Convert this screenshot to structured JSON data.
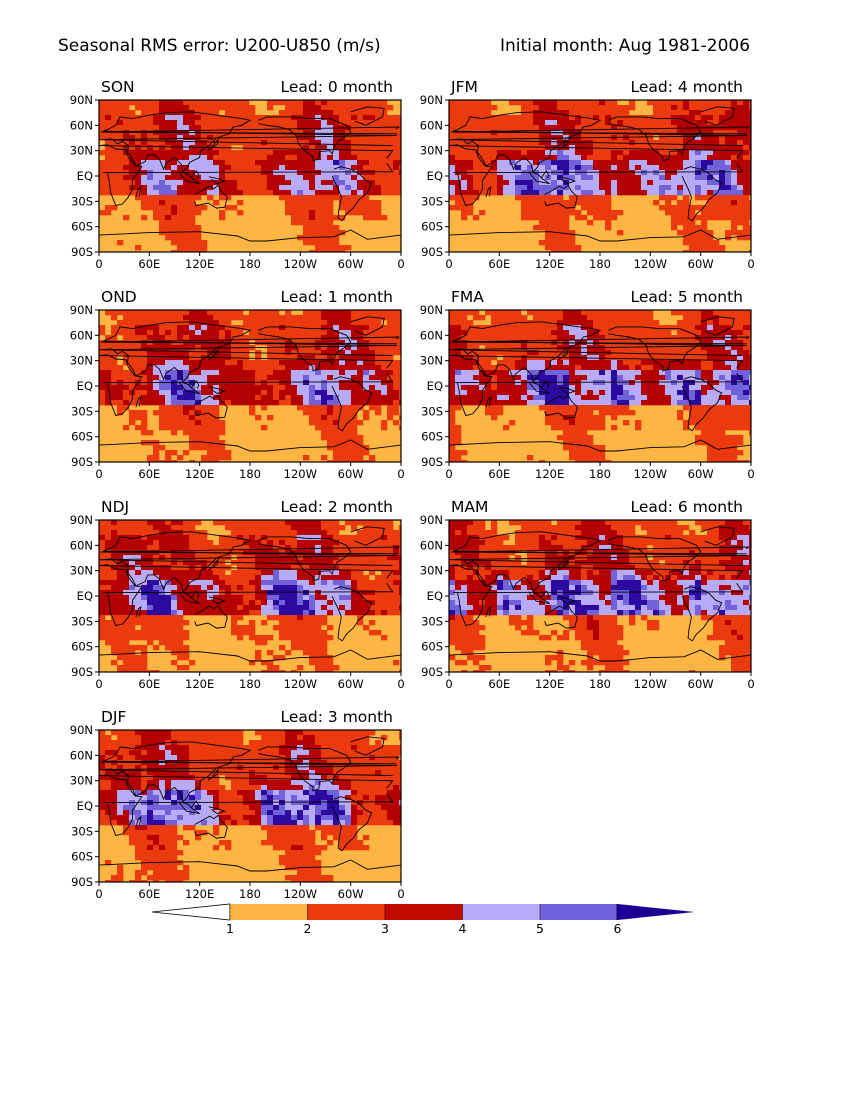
{
  "figure": {
    "title_left": "Seasonal RMS error: U200-U850 (m/s)",
    "title_right": "Initial month: Aug 1981-2006"
  },
  "axes": {
    "lat_ticks": [
      "90N",
      "60N",
      "30N",
      "EQ",
      "30S",
      "60S",
      "90S"
    ],
    "lon_ticks": [
      "0",
      "60E",
      "120E",
      "180",
      "120W",
      "60W",
      "0"
    ]
  },
  "panels": [
    {
      "season": "SON",
      "lead": "Lead: 0 month",
      "seed": 11,
      "intensity": 0.25
    },
    {
      "season": "JFM",
      "lead": "Lead: 4 month",
      "seed": 47,
      "intensity": 0.7
    },
    {
      "season": "OND",
      "lead": "Lead: 1 month",
      "seed": 23,
      "intensity": 0.4
    },
    {
      "season": "FMA",
      "lead": "Lead: 5 month",
      "seed": 59,
      "intensity": 0.8
    },
    {
      "season": "NDJ",
      "lead": "Lead: 2 month",
      "seed": 31,
      "intensity": 0.55
    },
    {
      "season": "MAM",
      "lead": "Lead: 6 month",
      "seed": 71,
      "intensity": 0.9
    },
    {
      "season": "DJF",
      "lead": "Lead: 3 month",
      "seed": 37,
      "intensity": 0.65
    }
  ],
  "colorbar": {
    "labels": [
      "1",
      "2",
      "3",
      "4",
      "5",
      "6"
    ],
    "colors": [
      "#ffffff",
      "#fdb643",
      "#ea3a0e",
      "#bf0a00",
      "#a0000c",
      "#b7aaf6",
      "#7162da",
      "#1c0094"
    ],
    "levels": [
      1,
      2,
      3,
      4,
      5,
      6
    ]
  },
  "map_colors": {
    "low": "#fdb643",
    "mid": "#ea3a0e",
    "high": "#b40000",
    "vhigh": "#b7aaf6",
    "vvhigh": "#7162da",
    "max": "#2c0aa0",
    "coast": "#000000"
  }
}
